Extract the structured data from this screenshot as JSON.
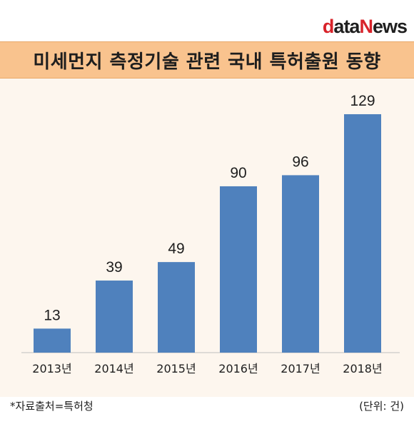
{
  "logo": {
    "part1": "d",
    "part2": "ata",
    "part3": "N",
    "part4": "ews"
  },
  "chart_data": {
    "type": "bar",
    "title": "미세먼지 측정기술 관련 국내 특허출원 동향",
    "categories": [
      "2013년",
      "2014년",
      "2015년",
      "2016년",
      "2017년",
      "2018년"
    ],
    "values": [
      13,
      39,
      49,
      90,
      96,
      129
    ],
    "ylim": [
      0,
      129
    ],
    "bar_color": "#4f81bd",
    "grid": false,
    "legend": "none"
  },
  "footer": {
    "source": "*자료출처=특허청",
    "unit": "(단위: 건)"
  }
}
